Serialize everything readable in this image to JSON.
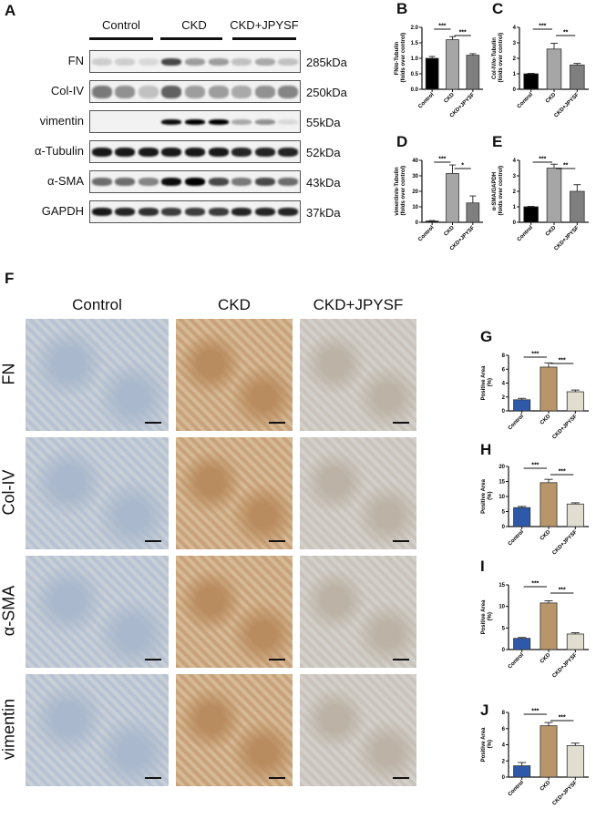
{
  "panel_letters": [
    "A",
    "B",
    "C",
    "D",
    "E",
    "F",
    "G",
    "H",
    "I",
    "J"
  ],
  "western_blot": {
    "groups": [
      "Control",
      "CKD",
      "CKD+JPYSF"
    ],
    "rows": [
      {
        "protein": "FN",
        "size": "285kDa"
      },
      {
        "protein": "Col-IV",
        "size": "250kDa"
      },
      {
        "protein": "vimentin",
        "size": "55kDa"
      },
      {
        "protein": "α-Tubulin",
        "size": "52kDa"
      },
      {
        "protein": "α-SMA",
        "size": "43kDa"
      },
      {
        "protein": "GAPDH",
        "size": "37kDa"
      }
    ]
  },
  "ihc": {
    "columns": [
      "Control",
      "CKD",
      "CKD+JPYSF"
    ],
    "rows": [
      "FN",
      "Col-IV",
      "α-SMA",
      "vimentin"
    ]
  },
  "chart_data": [
    {
      "panel": "B",
      "type": "bar",
      "categories": [
        "Control",
        "CKD",
        "CKD+JPYSF"
      ],
      "values": [
        1.0,
        1.6,
        1.1
      ],
      "errors": [
        0.06,
        0.1,
        0.05
      ],
      "ylabel": "FN/α-Tubulin (folds over control)",
      "ylim": [
        0,
        2
      ],
      "ticks": [
        "0.0",
        "0.5",
        "1.0",
        "1.5",
        "2.0"
      ],
      "tick_values": [
        0,
        0.5,
        1,
        1.5,
        2
      ],
      "colors": [
        "#000000",
        "#a6a6a6",
        "#7f7f7f"
      ],
      "significance": [
        {
          "pair": [
            0,
            1
          ],
          "label": "***"
        },
        {
          "pair": [
            1,
            2
          ],
          "label": "***"
        }
      ]
    },
    {
      "panel": "C",
      "type": "bar",
      "categories": [
        "Control",
        "CKD",
        "CKD+JPYSF"
      ],
      "values": [
        1.0,
        2.6,
        1.57
      ],
      "errors": [
        0.03,
        0.37,
        0.1
      ],
      "ylabel": "Col-IV/α-Tubulin (folds over control)",
      "ylim": [
        0,
        4
      ],
      "ticks": [
        "0",
        "1",
        "2",
        "3",
        "4"
      ],
      "tick_values": [
        0,
        1,
        2,
        3,
        4
      ],
      "colors": [
        "#000000",
        "#a6a6a6",
        "#7f7f7f"
      ],
      "significance": [
        {
          "pair": [
            0,
            1
          ],
          "label": "***"
        },
        {
          "pair": [
            1,
            2
          ],
          "label": "**"
        }
      ]
    },
    {
      "panel": "D",
      "type": "bar",
      "categories": [
        "Control",
        "CKD",
        "CKD+JPYSF"
      ],
      "values": [
        0.8,
        31.5,
        12.5
      ],
      "errors": [
        0.3,
        5.5,
        4.5
      ],
      "ylabel": "vimentin/α-Tubulin (folds over control)",
      "ylim": [
        0,
        40
      ],
      "ticks": [
        "0",
        "10",
        "20",
        "30",
        "40"
      ],
      "tick_values": [
        0,
        10,
        20,
        30,
        40
      ],
      "colors": [
        "#000000",
        "#a6a6a6",
        "#7f7f7f"
      ],
      "significance": [
        {
          "pair": [
            0,
            1
          ],
          "label": "***"
        },
        {
          "pair": [
            1,
            2
          ],
          "label": "*"
        }
      ]
    },
    {
      "panel": "E",
      "type": "bar",
      "categories": [
        "Control",
        "CKD",
        "CKD+JPYSF"
      ],
      "values": [
        1.0,
        3.5,
        2.0
      ],
      "errors": [
        0.03,
        0.25,
        0.43
      ],
      "ylabel": "α-SMA/GAPDH (folds over control)",
      "ylim": [
        0,
        4
      ],
      "ticks": [
        "0",
        "1",
        "2",
        "3",
        "4"
      ],
      "tick_values": [
        0,
        1,
        2,
        3,
        4
      ],
      "colors": [
        "#000000",
        "#a6a6a6",
        "#7f7f7f"
      ],
      "significance": [
        {
          "pair": [
            0,
            1
          ],
          "label": "***"
        },
        {
          "pair": [
            1,
            2
          ],
          "label": "**"
        }
      ]
    },
    {
      "panel": "G",
      "type": "bar",
      "categories": [
        "Control",
        "CKD",
        "CKD+JPYSF"
      ],
      "values": [
        1.6,
        6.3,
        2.75
      ],
      "errors": [
        0.2,
        0.6,
        0.25
      ],
      "ylabel": "Positive Area (%)",
      "ylim": [
        0,
        8
      ],
      "ticks": [
        "0",
        "2",
        "4",
        "6",
        "8"
      ],
      "tick_values": [
        0,
        2,
        4,
        6,
        8
      ],
      "colors": [
        "#2e59a8",
        "#b8966a",
        "#e2ddd0"
      ],
      "significance": [
        {
          "pair": [
            0,
            1
          ],
          "label": "***"
        },
        {
          "pair": [
            1,
            2
          ],
          "label": "***"
        }
      ]
    },
    {
      "panel": "H",
      "type": "bar",
      "categories": [
        "Control",
        "CKD",
        "CKD+JPYSF"
      ],
      "values": [
        6.3,
        14.6,
        7.5
      ],
      "errors": [
        0.4,
        1.1,
        0.4
      ],
      "ylabel": "Positive Area (%)",
      "ylim": [
        0,
        20
      ],
      "ticks": [
        "0",
        "5",
        "10",
        "15",
        "20"
      ],
      "tick_values": [
        0,
        5,
        10,
        15,
        20
      ],
      "colors": [
        "#2e59a8",
        "#b8966a",
        "#e2ddd0"
      ],
      "significance": [
        {
          "pair": [
            0,
            1
          ],
          "label": "***"
        },
        {
          "pair": [
            1,
            2
          ],
          "label": "***"
        }
      ]
    },
    {
      "panel": "I",
      "type": "bar",
      "categories": [
        "Control",
        "CKD",
        "CKD+JPYSF"
      ],
      "values": [
        2.6,
        10.8,
        3.6
      ],
      "errors": [
        0.2,
        0.5,
        0.3
      ],
      "ylabel": "Positive Area (%)",
      "ylim": [
        0,
        15
      ],
      "ticks": [
        "0",
        "5",
        "10",
        "15"
      ],
      "tick_values": [
        0,
        5,
        10,
        15
      ],
      "colors": [
        "#2e59a8",
        "#b8966a",
        "#e2ddd0"
      ],
      "significance": [
        {
          "pair": [
            0,
            1
          ],
          "label": "***"
        },
        {
          "pair": [
            1,
            2
          ],
          "label": "***"
        }
      ]
    },
    {
      "panel": "J",
      "type": "bar",
      "categories": [
        "Control",
        "CKD",
        "CKD+JPYSF"
      ],
      "values": [
        1.4,
        6.35,
        3.9
      ],
      "errors": [
        0.4,
        0.4,
        0.3
      ],
      "ylabel": "Positive Area (%)",
      "ylim": [
        0,
        8
      ],
      "ticks": [
        "0",
        "2",
        "4",
        "6",
        "8"
      ],
      "tick_values": [
        0,
        2,
        4,
        6,
        8
      ],
      "colors": [
        "#2e59a8",
        "#b8966a",
        "#e2ddd0"
      ],
      "significance": [
        {
          "pair": [
            0,
            1
          ],
          "label": "***"
        },
        {
          "pair": [
            1,
            2
          ],
          "label": "***"
        }
      ]
    }
  ]
}
